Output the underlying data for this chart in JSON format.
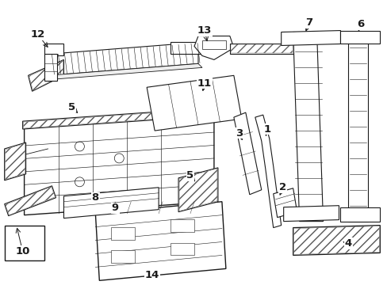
{
  "background_color": "#ffffff",
  "figure_width": 4.89,
  "figure_height": 3.6,
  "dpi": 100,
  "line_color": "#1a1a1a",
  "label_fontsize": 9.5
}
